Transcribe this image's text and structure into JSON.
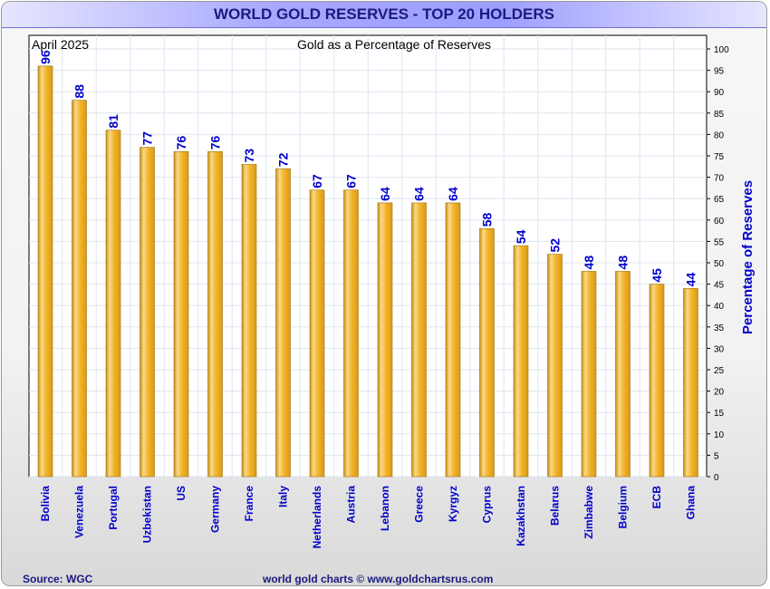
{
  "header": {
    "title": "WORLD GOLD RESERVES - TOP 20 HOLDERS"
  },
  "footer": {
    "source": "Source: WGC",
    "credit": "world gold charts © www.goldchartsrus.com"
  },
  "chart_data": {
    "type": "bar",
    "title": "Gold as a Percentage of Reserves",
    "date_label": "April 2025",
    "ylabel": "Percentage of Reserves",
    "ylim": [
      0,
      100
    ],
    "yticks": [
      0,
      5,
      10,
      15,
      20,
      25,
      30,
      35,
      40,
      45,
      50,
      55,
      60,
      65,
      70,
      75,
      80,
      85,
      90,
      95,
      100
    ],
    "y_axis_side": "right",
    "grid": true,
    "categories": [
      "Bolivia",
      "Venezuela",
      "Portugal",
      "Uzbekistan",
      "US",
      "Germany",
      "France",
      "Italy",
      "Netherlands",
      "Austria",
      "Lebanon",
      "Greece",
      "Kyrgyz",
      "Cyprus",
      "Kazakhstan",
      "Belarus",
      "Zimbabwe",
      "Belgium",
      "ECB",
      "Ghana"
    ],
    "values": [
      96,
      88,
      81,
      77,
      76,
      76,
      73,
      72,
      67,
      67,
      64,
      64,
      64,
      58,
      54,
      52,
      48,
      48,
      45,
      44
    ],
    "colors": {
      "bar": "#f5b52a",
      "label": "#0000cc",
      "title": "#1a1a80"
    }
  }
}
